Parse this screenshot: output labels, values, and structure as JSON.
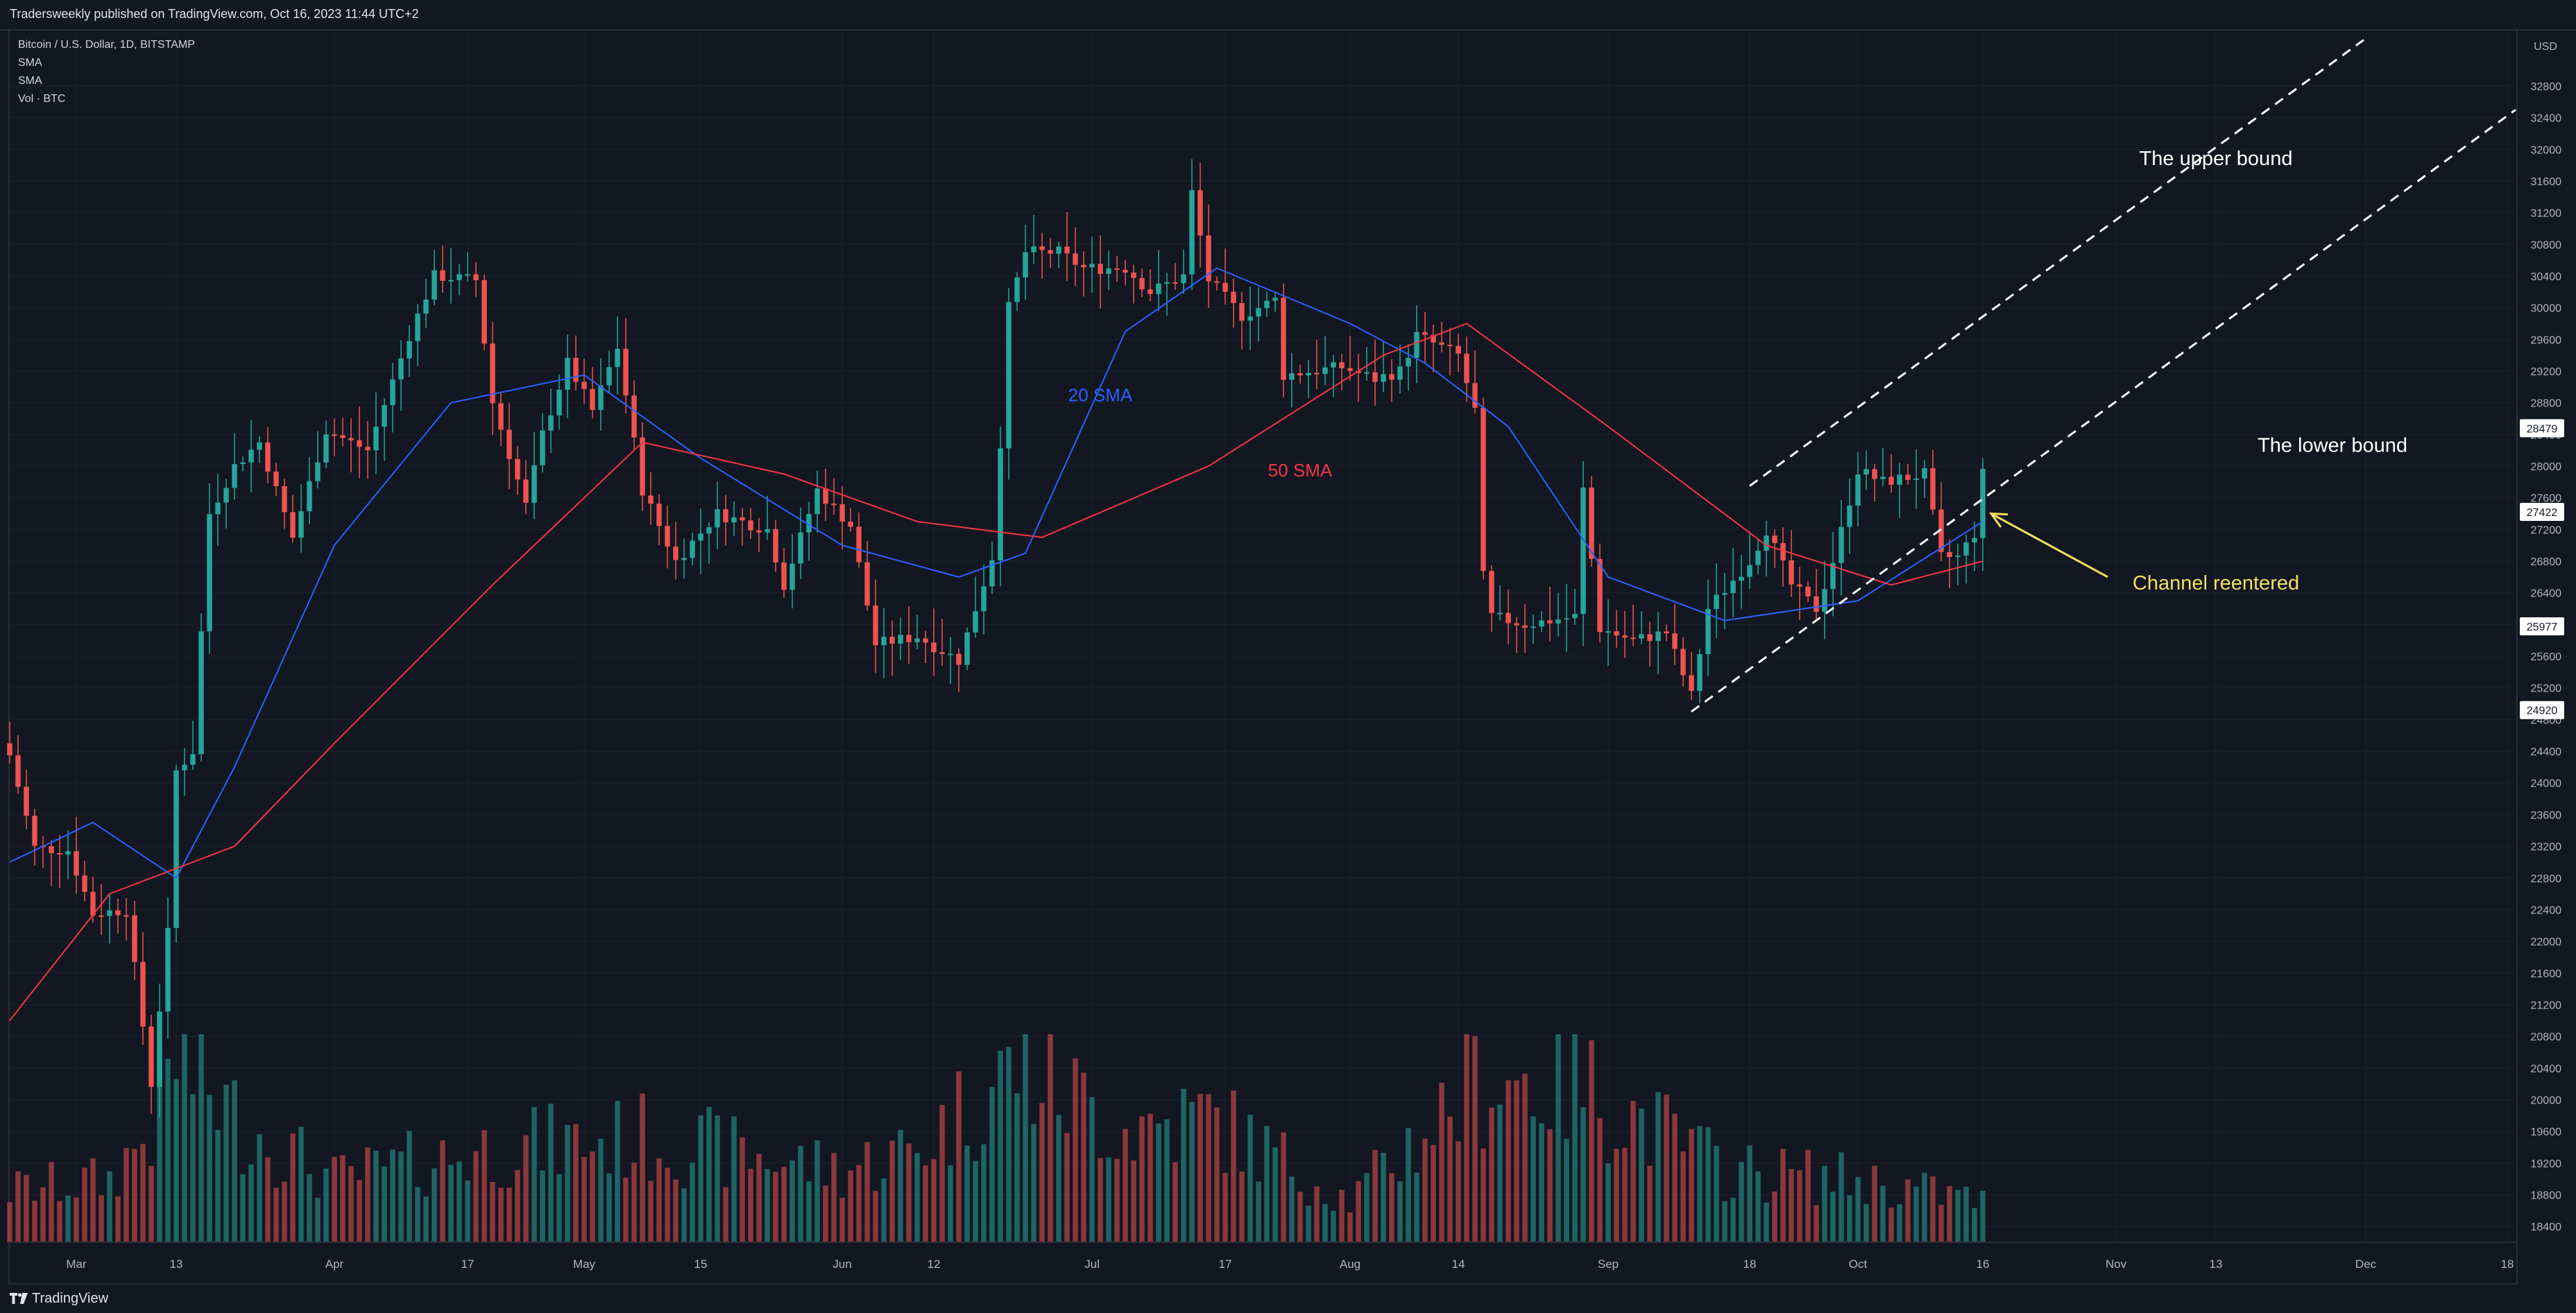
{
  "header": {
    "publisher_line": "Tradersweekly published on TradingView.com, Oct 16, 2023 11:44 UTC+2"
  },
  "legend": {
    "symbol": "Bitcoin / U.S. Dollar, 1D, BITSTAMP",
    "indicator_1": "SMA",
    "indicator_2": "SMA",
    "indicator_3": "Vol · BTC"
  },
  "footer": {
    "brand": "TradingView"
  },
  "colors": {
    "background": "#131722",
    "up": "#26a69a",
    "down": "#ef5350",
    "sma20": "#2962ff",
    "sma50": "#f23645",
    "annotation_white": "#ffffff",
    "annotation_yellow": "#f6e05e",
    "axis_text": "#b2b5be",
    "grid": "#1e222d"
  },
  "chart_data": {
    "type": "candlestick",
    "symbol": "BTCUSD",
    "interval": "1D",
    "exchange": "BITSTAMP",
    "y_axis": {
      "unit": "USD",
      "range": [
        18200,
        33500
      ],
      "tick_labels": [
        "32800",
        "32400",
        "32000",
        "31600",
        "31200",
        "30800",
        "30400",
        "30000",
        "29600",
        "29200",
        "28800",
        "28400",
        "28000",
        "27600",
        "27200",
        "26800",
        "26400",
        "26000",
        "25600",
        "25200",
        "24800",
        "24400",
        "24000",
        "23600",
        "23200",
        "22800",
        "22400",
        "22000",
        "21600",
        "21200",
        "20800",
        "20400",
        "20000",
        "19600",
        "19200",
        "18800",
        "18400"
      ]
    },
    "x_axis": {
      "range": [
        "2023-02-21",
        "2023-12-19"
      ],
      "tick_labels": [
        {
          "label": "Mar",
          "date": "2023-03-01"
        },
        {
          "label": "13",
          "date": "2023-03-13"
        },
        {
          "label": "Apr",
          "date": "2023-04-01"
        },
        {
          "label": "17",
          "date": "2023-04-17"
        },
        {
          "label": "May",
          "date": "2023-05-01"
        },
        {
          "label": "15",
          "date": "2023-05-15"
        },
        {
          "label": "Jun",
          "date": "2023-06-01"
        },
        {
          "label": "12",
          "date": "2023-06-12"
        },
        {
          "label": "Jul",
          "date": "2023-07-01"
        },
        {
          "label": "17",
          "date": "2023-07-17"
        },
        {
          "label": "Aug",
          "date": "2023-08-01"
        },
        {
          "label": "14",
          "date": "2023-08-14"
        },
        {
          "label": "Sep",
          "date": "2023-09-01"
        },
        {
          "label": "18",
          "date": "2023-09-18"
        },
        {
          "label": "Oct",
          "date": "2023-10-01"
        },
        {
          "label": "16",
          "date": "2023-10-16"
        },
        {
          "label": "Nov",
          "date": "2023-11-01"
        },
        {
          "label": "13",
          "date": "2023-11-13"
        },
        {
          "label": "Dec",
          "date": "2023-12-01"
        },
        {
          "label": "18",
          "date": "2023-12-18"
        }
      ]
    },
    "price_markers": [
      "28479",
      "27422",
      "25977",
      "24920"
    ],
    "close_anchors": [
      {
        "date": "2023-02-21",
        "close": 24350
      },
      {
        "date": "2023-02-24",
        "close": 23180
      },
      {
        "date": "2023-02-28",
        "close": 23150
      },
      {
        "date": "2023-03-03",
        "close": 22350
      },
      {
        "date": "2023-03-07",
        "close": 22400
      },
      {
        "date": "2023-03-10",
        "close": 20200
      },
      {
        "date": "2023-03-12",
        "close": 22100
      },
      {
        "date": "2023-03-13",
        "close": 24150
      },
      {
        "date": "2023-03-15",
        "close": 24400
      },
      {
        "date": "2023-03-17",
        "close": 27400
      },
      {
        "date": "2023-03-20",
        "close": 28000
      },
      {
        "date": "2023-03-23",
        "close": 28300
      },
      {
        "date": "2023-03-27",
        "close": 27100
      },
      {
        "date": "2023-03-31",
        "close": 28450
      },
      {
        "date": "2023-04-05",
        "close": 28200
      },
      {
        "date": "2023-04-10",
        "close": 29650
      },
      {
        "date": "2023-04-13",
        "close": 30400
      },
      {
        "date": "2023-04-18",
        "close": 30350
      },
      {
        "date": "2023-04-20",
        "close": 28800
      },
      {
        "date": "2023-04-24",
        "close": 27500
      },
      {
        "date": "2023-04-26",
        "close": 28400
      },
      {
        "date": "2023-04-29",
        "close": 29300
      },
      {
        "date": "2023-05-02",
        "close": 28700
      },
      {
        "date": "2023-05-05",
        "close": 29500
      },
      {
        "date": "2023-05-08",
        "close": 27700
      },
      {
        "date": "2023-05-12",
        "close": 26800
      },
      {
        "date": "2023-05-17",
        "close": 27400
      },
      {
        "date": "2023-05-23",
        "close": 27200
      },
      {
        "date": "2023-05-25",
        "close": 26500
      },
      {
        "date": "2023-05-29",
        "close": 27700
      },
      {
        "date": "2023-06-02",
        "close": 27250
      },
      {
        "date": "2023-06-05",
        "close": 25750
      },
      {
        "date": "2023-06-10",
        "close": 25850
      },
      {
        "date": "2023-06-15",
        "close": 25550
      },
      {
        "date": "2023-06-19",
        "close": 26850
      },
      {
        "date": "2023-06-20",
        "close": 28300
      },
      {
        "date": "2023-06-21",
        "close": 30000
      },
      {
        "date": "2023-06-23",
        "close": 30700
      },
      {
        "date": "2023-06-27",
        "close": 30700
      },
      {
        "date": "2023-06-30",
        "close": 30500
      },
      {
        "date": "2023-07-05",
        "close": 30500
      },
      {
        "date": "2023-07-08",
        "close": 30200
      },
      {
        "date": "2023-07-12",
        "close": 30400
      },
      {
        "date": "2023-07-13",
        "close": 31450
      },
      {
        "date": "2023-07-15",
        "close": 30350
      },
      {
        "date": "2023-07-19",
        "close": 29900
      },
      {
        "date": "2023-07-23",
        "close": 30100
      },
      {
        "date": "2023-07-24",
        "close": 29150
      },
      {
        "date": "2023-07-31",
        "close": 29250
      },
      {
        "date": "2023-08-04",
        "close": 29100
      },
      {
        "date": "2023-08-07",
        "close": 29200
      },
      {
        "date": "2023-08-09",
        "close": 29650
      },
      {
        "date": "2023-08-14",
        "close": 29400
      },
      {
        "date": "2023-08-16",
        "close": 28700
      },
      {
        "date": "2023-08-17",
        "close": 26600
      },
      {
        "date": "2023-08-18",
        "close": 26100
      },
      {
        "date": "2023-08-22",
        "close": 26000
      },
      {
        "date": "2023-08-28",
        "close": 26100
      },
      {
        "date": "2023-08-29",
        "close": 27700
      },
      {
        "date": "2023-08-31",
        "close": 25950
      },
      {
        "date": "2023-09-04",
        "close": 25800
      },
      {
        "date": "2023-09-08",
        "close": 25900
      },
      {
        "date": "2023-09-11",
        "close": 25100
      },
      {
        "date": "2023-09-13",
        "close": 26200
      },
      {
        "date": "2023-09-18",
        "close": 26800
      },
      {
        "date": "2023-09-20",
        "close": 27200
      },
      {
        "date": "2023-09-23",
        "close": 26500
      },
      {
        "date": "2023-09-26",
        "close": 26200
      },
      {
        "date": "2023-09-28",
        "close": 26800
      },
      {
        "date": "2023-10-01",
        "close": 27950
      },
      {
        "date": "2023-10-04",
        "close": 27800
      },
      {
        "date": "2023-10-09",
        "close": 27900
      },
      {
        "date": "2023-10-11",
        "close": 26850
      },
      {
        "date": "2023-10-13",
        "close": 26850
      },
      {
        "date": "2023-10-15",
        "close": 27150
      },
      {
        "date": "2023-10-16",
        "close": 27900
      }
    ],
    "sma20_anchors": [
      {
        "date": "2023-02-21",
        "value": 23000
      },
      {
        "date": "2023-03-03",
        "value": 23500
      },
      {
        "date": "2023-03-13",
        "value": 22800
      },
      {
        "date": "2023-03-20",
        "value": 24200
      },
      {
        "date": "2023-04-01",
        "value": 27000
      },
      {
        "date": "2023-04-15",
        "value": 28800
      },
      {
        "date": "2023-05-01",
        "value": 29150
      },
      {
        "date": "2023-05-15",
        "value": 28100
      },
      {
        "date": "2023-06-01",
        "value": 27000
      },
      {
        "date": "2023-06-15",
        "value": 26600
      },
      {
        "date": "2023-06-23",
        "value": 26900
      },
      {
        "date": "2023-07-05",
        "value": 29700
      },
      {
        "date": "2023-07-16",
        "value": 30500
      },
      {
        "date": "2023-08-01",
        "value": 29800
      },
      {
        "date": "2023-08-10",
        "value": 29300
      },
      {
        "date": "2023-08-20",
        "value": 28500
      },
      {
        "date": "2023-09-01",
        "value": 26600
      },
      {
        "date": "2023-09-15",
        "value": 26050
      },
      {
        "date": "2023-10-01",
        "value": 26300
      },
      {
        "date": "2023-10-16",
        "value": 27300
      }
    ],
    "sma50_anchors": [
      {
        "date": "2023-02-21",
        "value": 21000
      },
      {
        "date": "2023-03-05",
        "value": 22600
      },
      {
        "date": "2023-03-20",
        "value": 23200
      },
      {
        "date": "2023-04-01",
        "value": 24500
      },
      {
        "date": "2023-04-20",
        "value": 26500
      },
      {
        "date": "2023-05-08",
        "value": 28300
      },
      {
        "date": "2023-05-25",
        "value": 27900
      },
      {
        "date": "2023-06-10",
        "value": 27300
      },
      {
        "date": "2023-06-25",
        "value": 27100
      },
      {
        "date": "2023-07-15",
        "value": 28000
      },
      {
        "date": "2023-08-05",
        "value": 29400
      },
      {
        "date": "2023-08-15",
        "value": 29800
      },
      {
        "date": "2023-09-01",
        "value": 28500
      },
      {
        "date": "2023-09-20",
        "value": 27000
      },
      {
        "date": "2023-10-05",
        "value": 26500
      },
      {
        "date": "2023-10-16",
        "value": 26800
      }
    ],
    "volume": {
      "scale": "relative, 0-1",
      "anchors": [
        {
          "date": "2023-02-21",
          "v": 0.25
        },
        {
          "date": "2023-03-05",
          "v": 0.3
        },
        {
          "date": "2023-03-10",
          "v": 0.55
        },
        {
          "date": "2023-03-13",
          "v": 0.9
        },
        {
          "date": "2023-03-20",
          "v": 0.6
        },
        {
          "date": "2023-04-01",
          "v": 0.3
        },
        {
          "date": "2023-04-20",
          "v": 0.45
        },
        {
          "date": "2023-05-08",
          "v": 0.5
        },
        {
          "date": "2023-06-01",
          "v": 0.35
        },
        {
          "date": "2023-06-10",
          "v": 0.45
        },
        {
          "date": "2023-06-22",
          "v": 0.85
        },
        {
          "date": "2023-07-05",
          "v": 0.55
        },
        {
          "date": "2023-07-15",
          "v": 0.6
        },
        {
          "date": "2023-08-01",
          "v": 0.2
        },
        {
          "date": "2023-08-17",
          "v": 0.8
        },
        {
          "date": "2023-08-29",
          "v": 0.75
        },
        {
          "date": "2023-09-15",
          "v": 0.35
        },
        {
          "date": "2023-10-01",
          "v": 0.3
        },
        {
          "date": "2023-10-16",
          "v": 0.2
        }
      ]
    },
    "trendlines": [
      {
        "name": "upper_bound",
        "style": "dashed",
        "color": "#ffffff",
        "points": [
          {
            "date": "2023-09-18",
            "price": 27750
          },
          {
            "date": "2023-12-01",
            "price": 33400
          }
        ]
      },
      {
        "name": "lower_bound",
        "style": "dashed",
        "color": "#ffffff",
        "points": [
          {
            "date": "2023-09-11",
            "price": 24900
          },
          {
            "date": "2023-12-19",
            "price": 32500
          }
        ]
      }
    ],
    "annotations": [
      {
        "text": "20 SMA",
        "color": "#2962ff",
        "date": "2023-07-02",
        "price": 28820
      },
      {
        "text": "50 SMA",
        "color": "#f23645",
        "date": "2023-07-26",
        "price": 27870
      },
      {
        "text": "The upper bound",
        "color": "#ffffff",
        "date": "2023-11-13",
        "price": 31800
      },
      {
        "text": "The lower bound",
        "color": "#ffffff",
        "date": "2023-11-27",
        "price": 28180
      },
      {
        "text": "Channel reentered",
        "color": "#f6e05e",
        "date": "2023-11-13",
        "price": 26440
      }
    ],
    "arrow": {
      "color": "#f6e05e",
      "from": {
        "date": "2023-10-31",
        "price": 26600
      },
      "to": {
        "date": "2023-10-17",
        "price": 27400
      }
    }
  }
}
